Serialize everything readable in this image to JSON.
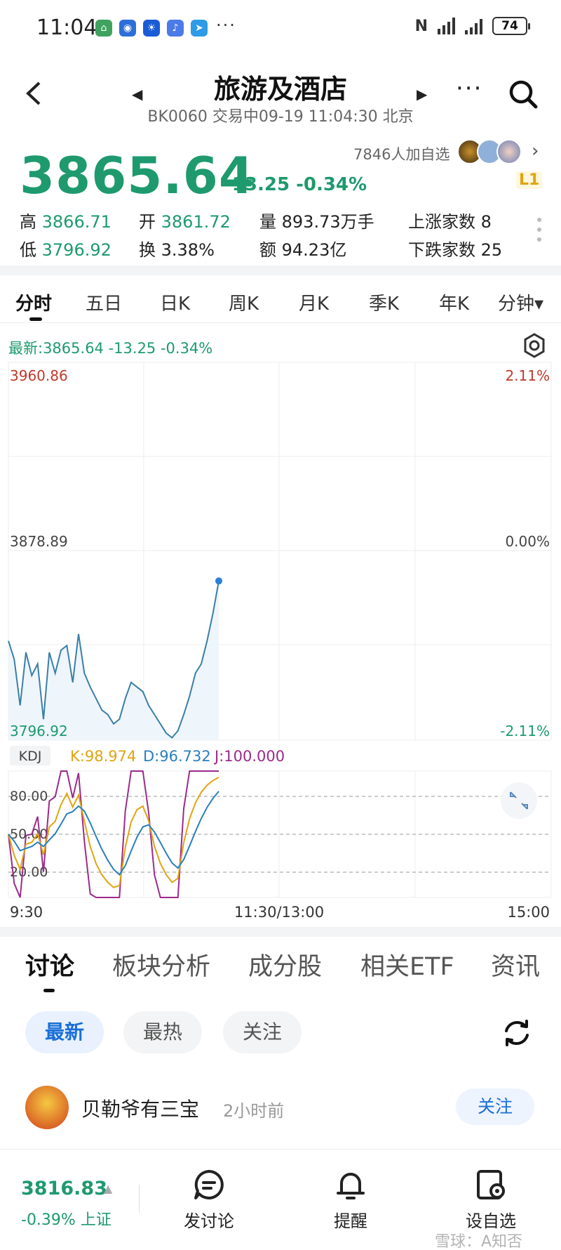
{
  "status": {
    "time": "11:04",
    "battery": "74",
    "more": "···"
  },
  "header": {
    "title": "旅游及酒店",
    "subtitle": "BK0060 交易中09-19 11:04:30 北京",
    "more": "···"
  },
  "quote": {
    "price": "3865.64",
    "change": "-13.25 -0.34%",
    "followers": "7846人加自选",
    "level": "L1"
  },
  "stats": {
    "high_label": "高",
    "high": "3866.71",
    "open_label": "开",
    "open": "3861.72",
    "volume_label": "量",
    "volume": "893.73万手",
    "up_label": "上涨家数",
    "up": "8",
    "low_label": "低",
    "low": "3796.92",
    "turnover_label": "换",
    "turnover": "3.38%",
    "amount_label": "额",
    "amount": "94.23亿",
    "down_label": "下跌家数",
    "down": "25"
  },
  "period_tabs": [
    "分时",
    "五日",
    "日K",
    "周K",
    "月K",
    "季K",
    "年K",
    "分钟▾"
  ],
  "chart_info": {
    "latest": "最新:3865.64  -13.25  -0.34%"
  },
  "chart_data": {
    "type": "line",
    "x_labels": [
      "9:30",
      "11:30/13:00",
      "15:00"
    ],
    "ylim": [
      3796.92,
      3960.86
    ],
    "y_labels_left": [
      "3960.86",
      "3878.89",
      "3796.92"
    ],
    "y_labels_right": [
      "2.11%",
      "0.00%",
      "-2.11%"
    ],
    "price_series": [
      3840,
      3832,
      3812,
      3835,
      3825,
      3830,
      3806,
      3835,
      3826,
      3836,
      3838,
      3822,
      3843,
      3826,
      3820,
      3815,
      3810,
      3808,
      3804,
      3806,
      3815,
      3822,
      3820,
      3818,
      3812,
      3808,
      3804,
      3800,
      3798,
      3801,
      3808,
      3816,
      3826,
      3830,
      3840,
      3852,
      3866
    ],
    "kdj": {
      "label": "KDJ",
      "k_text": "K:98.974",
      "d_text": "D:96.732",
      "j_text": "J:100.000",
      "levels": [
        "80.00",
        "50.00",
        "20.00"
      ],
      "colors": {
        "k": "#e0a410",
        "d": "#2a7fbf",
        "j": "#9c2a8a"
      }
    }
  },
  "bottom_tabs": [
    "讨论",
    "板块分析",
    "成分股",
    "相关ETF",
    "资讯"
  ],
  "chips": [
    "最新",
    "最热",
    "关注"
  ],
  "post": {
    "author": "贝勒爷有三宝",
    "time": "2小时前",
    "follow": "关注"
  },
  "bottombar": {
    "index_value": "3816.83",
    "index_change": "-0.39% 上证",
    "discuss": "发讨论",
    "remind": "提醒",
    "watchlist": "设自选"
  },
  "watermark": "雪球：A知否"
}
